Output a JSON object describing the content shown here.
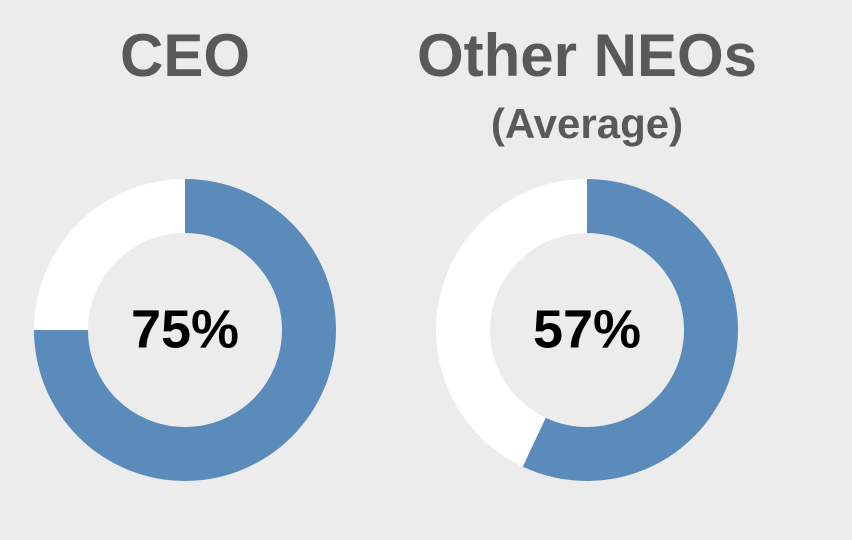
{
  "chart_data": [
    {
      "type": "donut",
      "title": "CEO",
      "values": [
        75,
        25
      ],
      "value_labels": [
        "75%",
        null
      ],
      "colors": [
        "#5b8bba",
        "#ffffff"
      ]
    },
    {
      "type": "donut",
      "title": "Other NEOs",
      "subtitle": "(Average)",
      "values": [
        57,
        43
      ],
      "value_labels": [
        "57%",
        null
      ],
      "colors": [
        "#5b8bba",
        "#ffffff"
      ]
    }
  ]
}
